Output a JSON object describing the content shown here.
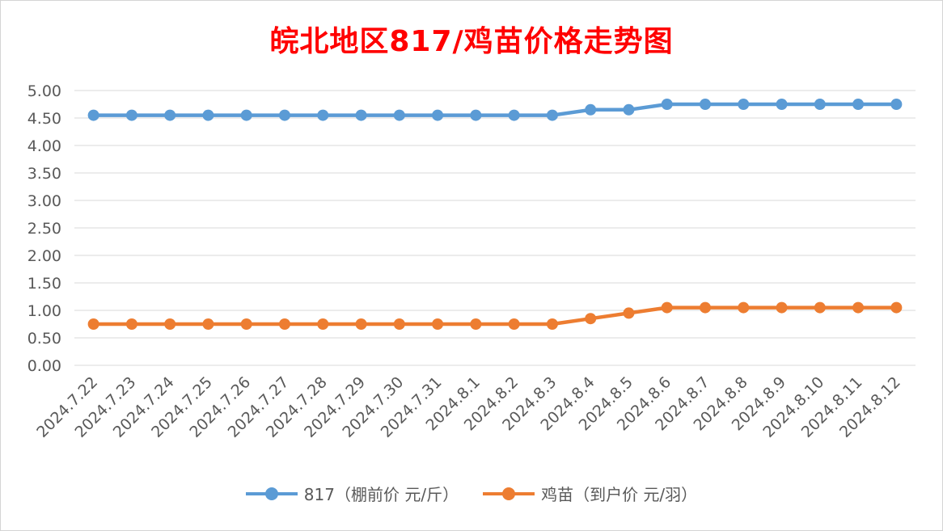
{
  "chart_data": {
    "type": "line",
    "title": "皖北地区817/鸡苗价格走势图",
    "categories": [
      "2024.7.22",
      "2024.7.23",
      "2024.7.24",
      "2024.7.25",
      "2024.7.26",
      "2024.7.27",
      "2024.7.28",
      "2024.7.29",
      "2024.7.30",
      "2024.7.31",
      "2024.8.1",
      "2024.8.2",
      "2024.8.3",
      "2024.8.4",
      "2024.8.5",
      "2024.8.6",
      "2024.8.7",
      "2024.8.8",
      "2024.8.9",
      "2024.8.10",
      "2024.8.11",
      "2024.8.12"
    ],
    "series": [
      {
        "name": "817（棚前价 元/斤）",
        "color": "#5b9bd5",
        "values": [
          4.55,
          4.55,
          4.55,
          4.55,
          4.55,
          4.55,
          4.55,
          4.55,
          4.55,
          4.55,
          4.55,
          4.55,
          4.55,
          4.65,
          4.65,
          4.75,
          4.75,
          4.75,
          4.75,
          4.75,
          4.75,
          4.75
        ]
      },
      {
        "name": "鸡苗（到户价 元/羽）",
        "color": "#ed7d31",
        "values": [
          0.75,
          0.75,
          0.75,
          0.75,
          0.75,
          0.75,
          0.75,
          0.75,
          0.75,
          0.75,
          0.75,
          0.75,
          0.75,
          0.85,
          0.95,
          1.05,
          1.05,
          1.05,
          1.05,
          1.05,
          1.05,
          1.05
        ]
      }
    ],
    "ylim": [
      0,
      5
    ],
    "yticks": [
      "0.00",
      "0.50",
      "1.00",
      "1.50",
      "2.00",
      "2.50",
      "3.00",
      "3.50",
      "4.00",
      "4.50",
      "5.00"
    ],
    "grid": true,
    "legend": "bottom",
    "title_color": "#ff0000"
  }
}
